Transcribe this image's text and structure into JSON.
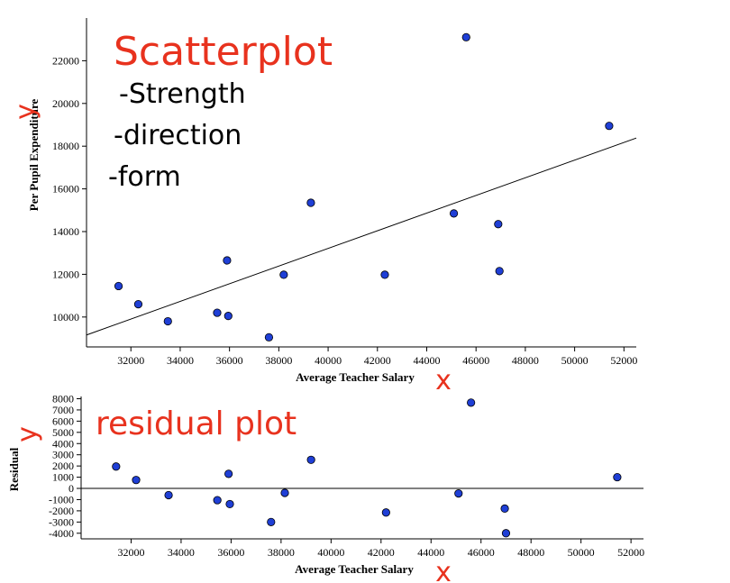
{
  "colors": {
    "point_fill": "#1f3fd6",
    "annotation_red": "#e8321e",
    "ink": "#000000"
  },
  "chart_data": [
    {
      "type": "scatter",
      "title": "",
      "xlabel": "Average Teacher Salary",
      "ylabel": "Per Pupil Expenditure",
      "xlim": [
        30200,
        52500
      ],
      "ylim": [
        8600,
        24000
      ],
      "x_ticks": [
        32000,
        34000,
        36000,
        38000,
        40000,
        42000,
        44000,
        46000,
        48000,
        50000,
        52000
      ],
      "y_ticks": [
        10000,
        12000,
        14000,
        16000,
        18000,
        20000,
        22000
      ],
      "grid": false,
      "points": [
        {
          "x": 31500,
          "y": 11450
        },
        {
          "x": 32300,
          "y": 10600
        },
        {
          "x": 33500,
          "y": 9800
        },
        {
          "x": 35500,
          "y": 10200
        },
        {
          "x": 35900,
          "y": 12650
        },
        {
          "x": 35950,
          "y": 10050
        },
        {
          "x": 37600,
          "y": 9050
        },
        {
          "x": 38200,
          "y": 11980
        },
        {
          "x": 39300,
          "y": 15350
        },
        {
          "x": 42300,
          "y": 11980
        },
        {
          "x": 45100,
          "y": 14850
        },
        {
          "x": 45600,
          "y": 23100
        },
        {
          "x": 46900,
          "y": 14350
        },
        {
          "x": 46950,
          "y": 12150
        },
        {
          "x": 51400,
          "y": 18950
        }
      ],
      "regression_line": [
        {
          "x": 30200,
          "y": 9160
        },
        {
          "x": 52500,
          "y": 18380
        }
      ],
      "annotations": {
        "title": "Scatterplot",
        "bullets": [
          "-Strength",
          "-direction",
          "-form"
        ],
        "x_mark": "x",
        "y_mark": "y"
      }
    },
    {
      "type": "scatter",
      "title": "",
      "xlabel": "Average Teacher Salary",
      "ylabel": "Residual",
      "xlim": [
        30000,
        52500
      ],
      "ylim": [
        -4500,
        8200
      ],
      "x_ticks": [
        32000,
        34000,
        36000,
        38000,
        40000,
        42000,
        44000,
        46000,
        48000,
        50000,
        52000
      ],
      "y_ticks": [
        -4000,
        -3000,
        -2000,
        -1000,
        0,
        1000,
        2000,
        3000,
        4000,
        5000,
        6000,
        7000,
        8000
      ],
      "grid": false,
      "zero_line": true,
      "points": [
        {
          "x": 31400,
          "y": 1950
        },
        {
          "x": 32200,
          "y": 750
        },
        {
          "x": 33500,
          "y": -600
        },
        {
          "x": 35450,
          "y": -1050
        },
        {
          "x": 35900,
          "y": 1300
        },
        {
          "x": 35950,
          "y": -1400
        },
        {
          "x": 37600,
          "y": -3000
        },
        {
          "x": 38150,
          "y": -400
        },
        {
          "x": 39200,
          "y": 2550
        },
        {
          "x": 42200,
          "y": -2150
        },
        {
          "x": 45100,
          "y": -450
        },
        {
          "x": 45600,
          "y": 7650
        },
        {
          "x": 46950,
          "y": -1800
        },
        {
          "x": 47000,
          "y": -4000
        },
        {
          "x": 51450,
          "y": 1000
        }
      ],
      "annotations": {
        "title": "residual plot",
        "x_mark": "x",
        "y_mark": "y"
      }
    }
  ]
}
